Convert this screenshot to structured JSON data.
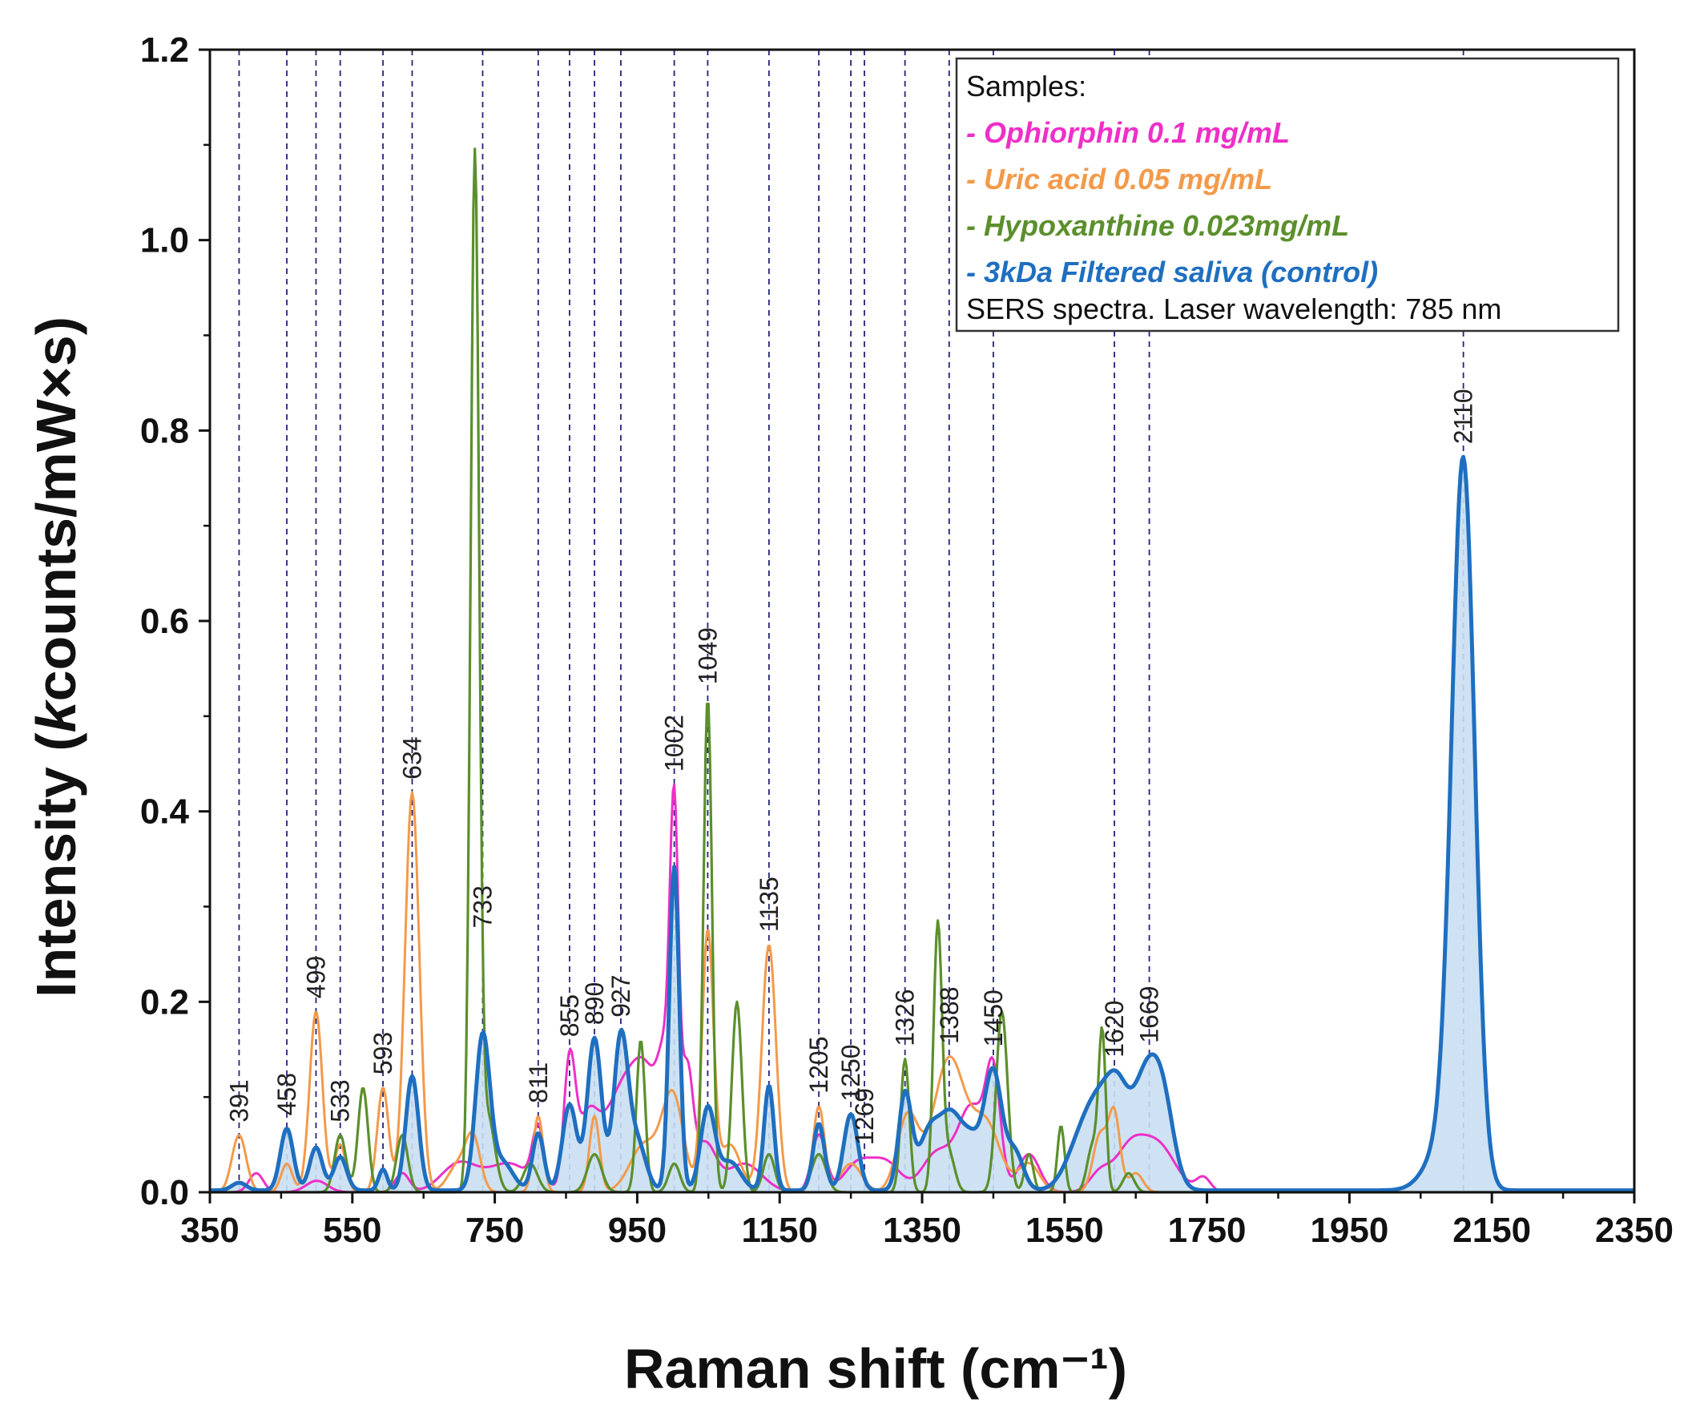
{
  "chart_data": {
    "type": "line",
    "title": "",
    "xlabel": "Raman shift (cm⁻¹)",
    "ylabel_parts": [
      "Intensity (",
      "k",
      "counts/mW×s)"
    ],
    "xlim": [
      350,
      2350
    ],
    "ylim": [
      0,
      1.2
    ],
    "xticks": [
      "350",
      "550",
      "750",
      "950",
      "1150",
      "1350",
      "1550",
      "1750",
      "1950",
      "2150",
      "2350"
    ],
    "yticks": [
      "0.0",
      "0.2",
      "0.4",
      "0.6",
      "0.8",
      "1.0",
      "1.2"
    ],
    "legend": {
      "position": "top-right",
      "header": "Samples:",
      "footer": "SERS spectra. Laser wavelength: 785 nm"
    },
    "colors": {
      "ophiorphin": "#ee2fc8",
      "uric": "#f39a4a",
      "hypoxanthine": "#5b8f2c",
      "saliva": "#1f6fc0",
      "fill": "#c9dff2",
      "marker": "#23237a"
    },
    "peak_markers": [
      {
        "x": 391,
        "label": "391"
      },
      {
        "x": 458,
        "label": "458"
      },
      {
        "x": 499,
        "label": "499"
      },
      {
        "x": 533,
        "label": "533"
      },
      {
        "x": 593,
        "label": "593"
      },
      {
        "x": 634,
        "label": "634"
      },
      {
        "x": 733,
        "label": "733"
      },
      {
        "x": 811,
        "label": "811"
      },
      {
        "x": 855,
        "label": "855"
      },
      {
        "x": 890,
        "label": "890"
      },
      {
        "x": 927,
        "label": "927"
      },
      {
        "x": 1002,
        "label": "1002"
      },
      {
        "x": 1049,
        "label": "1049"
      },
      {
        "x": 1135,
        "label": "1135"
      },
      {
        "x": 1205,
        "label": "1205"
      },
      {
        "x": 1250,
        "label": "1250"
      },
      {
        "x": 1269,
        "label": "1269"
      },
      {
        "x": 1326,
        "label": "1326"
      },
      {
        "x": 1388,
        "label": "1388"
      },
      {
        "x": 1450,
        "label": "1450"
      },
      {
        "x": 1620,
        "label": "1620"
      },
      {
        "x": 1669,
        "label": "1669"
      },
      {
        "x": 2110,
        "label": "2110"
      }
    ],
    "series": [
      {
        "key": "ophiorphin",
        "name": "- Ophiorphin 0.1 mg/mL",
        "baseline": 0,
        "peaks": [
          [
            415,
            0.02,
            10
          ],
          [
            500,
            0.012,
            15
          ],
          [
            620,
            0.02,
            10
          ],
          [
            700,
            0.03,
            25
          ],
          [
            770,
            0.03,
            30
          ],
          [
            811,
            0.06,
            8
          ],
          [
            855,
            0.13,
            8
          ],
          [
            880,
            0.07,
            15
          ],
          [
            927,
            0.1,
            25
          ],
          [
            965,
            0.1,
            20
          ],
          [
            990,
            0.1,
            10
          ],
          [
            1002,
            0.35,
            6
          ],
          [
            1020,
            0.12,
            8
          ],
          [
            1045,
            0.05,
            15
          ],
          [
            1100,
            0.03,
            25
          ],
          [
            1205,
            0.06,
            10
          ],
          [
            1260,
            0.03,
            20
          ],
          [
            1300,
            0.03,
            20
          ],
          [
            1370,
            0.04,
            20
          ],
          [
            1420,
            0.09,
            20
          ],
          [
            1450,
            0.11,
            10
          ],
          [
            1500,
            0.04,
            15
          ],
          [
            1600,
            0.02,
            15
          ],
          [
            1640,
            0.04,
            20
          ],
          [
            1680,
            0.05,
            25
          ],
          [
            1745,
            0.015,
            10
          ]
        ]
      },
      {
        "key": "uric",
        "name": "- Uric acid 0.05 mg/mL",
        "baseline": 0,
        "peaks": [
          [
            391,
            0.06,
            10
          ],
          [
            458,
            0.03,
            8
          ],
          [
            499,
            0.19,
            9
          ],
          [
            533,
            0.05,
            8
          ],
          [
            593,
            0.11,
            8
          ],
          [
            634,
            0.42,
            10
          ],
          [
            700,
            0.03,
            15
          ],
          [
            720,
            0.05,
            10
          ],
          [
            811,
            0.08,
            7
          ],
          [
            890,
            0.08,
            7
          ],
          [
            960,
            0.05,
            20
          ],
          [
            1000,
            0.1,
            15
          ],
          [
            1049,
            0.27,
            8
          ],
          [
            1080,
            0.05,
            15
          ],
          [
            1135,
            0.26,
            10
          ],
          [
            1205,
            0.09,
            8
          ],
          [
            1250,
            0.03,
            15
          ],
          [
            1330,
            0.08,
            15
          ],
          [
            1388,
            0.14,
            22
          ],
          [
            1440,
            0.07,
            20
          ],
          [
            1500,
            0.03,
            15
          ],
          [
            1600,
            0.06,
            10
          ],
          [
            1620,
            0.08,
            8
          ],
          [
            1650,
            0.02,
            10
          ]
        ]
      },
      {
        "key": "hypoxanthine",
        "name": "- Hypoxanthine 0.023mg/mL",
        "baseline": 0,
        "peaks": [
          [
            533,
            0.06,
            8
          ],
          [
            565,
            0.11,
            7
          ],
          [
            620,
            0.06,
            8
          ],
          [
            722,
            1.08,
            6
          ],
          [
            740,
            0.08,
            10
          ],
          [
            800,
            0.03,
            10
          ],
          [
            890,
            0.04,
            10
          ],
          [
            955,
            0.16,
            6
          ],
          [
            1002,
            0.03,
            8
          ],
          [
            1049,
            0.52,
            6
          ],
          [
            1090,
            0.2,
            7
          ],
          [
            1135,
            0.04,
            8
          ],
          [
            1205,
            0.04,
            10
          ],
          [
            1326,
            0.14,
            6
          ],
          [
            1372,
            0.28,
            6
          ],
          [
            1388,
            0.04,
            8
          ],
          [
            1462,
            0.19,
            8
          ],
          [
            1500,
            0.04,
            6
          ],
          [
            1545,
            0.07,
            5
          ],
          [
            1590,
            0.05,
            8
          ],
          [
            1603,
            0.16,
            5
          ],
          [
            1640,
            0.02,
            8
          ]
        ]
      },
      {
        "key": "saliva",
        "name": "- 3kDa Filtered saliva (control)",
        "baseline": 0.002,
        "fill": true,
        "peaks": [
          [
            391,
            0.008,
            10
          ],
          [
            458,
            0.065,
            9
          ],
          [
            499,
            0.045,
            9
          ],
          [
            533,
            0.035,
            9
          ],
          [
            593,
            0.022,
            6
          ],
          [
            634,
            0.12,
            9
          ],
          [
            733,
            0.16,
            10
          ],
          [
            760,
            0.03,
            15
          ],
          [
            811,
            0.06,
            8
          ],
          [
            855,
            0.09,
            10
          ],
          [
            890,
            0.16,
            10
          ],
          [
            927,
            0.16,
            10
          ],
          [
            950,
            0.05,
            12
          ],
          [
            1002,
            0.34,
            7
          ],
          [
            1049,
            0.085,
            10
          ],
          [
            1080,
            0.03,
            15
          ],
          [
            1135,
            0.11,
            7
          ],
          [
            1205,
            0.07,
            8
          ],
          [
            1250,
            0.08,
            10
          ],
          [
            1326,
            0.1,
            9
          ],
          [
            1360,
            0.06,
            15
          ],
          [
            1390,
            0.07,
            15
          ],
          [
            1420,
            0.05,
            15
          ],
          [
            1450,
            0.12,
            12
          ],
          [
            1480,
            0.04,
            12
          ],
          [
            1570,
            0.04,
            20
          ],
          [
            1600,
            0.08,
            20
          ],
          [
            1625,
            0.07,
            15
          ],
          [
            1665,
            0.12,
            20
          ],
          [
            1690,
            0.06,
            15
          ],
          [
            2085,
            0.05,
            25
          ],
          [
            2110,
            0.74,
            16
          ]
        ]
      }
    ]
  }
}
